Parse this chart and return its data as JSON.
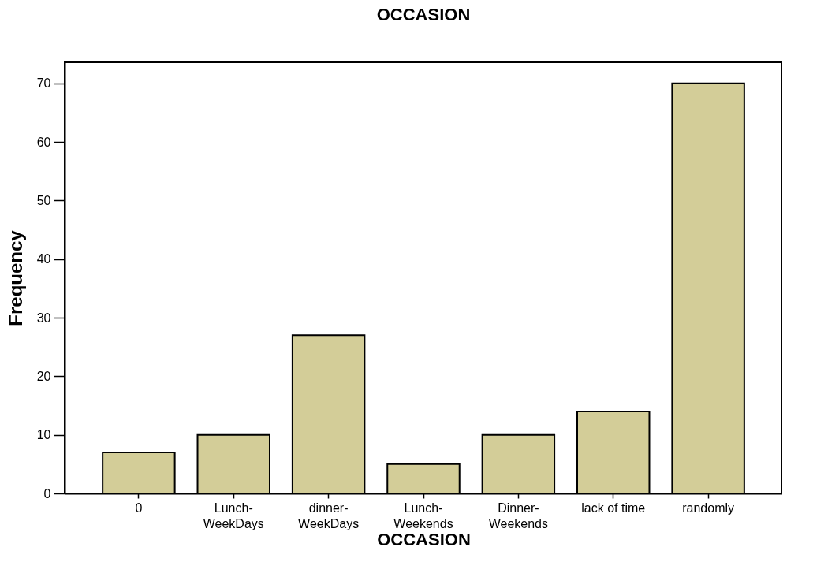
{
  "chart_data": {
    "type": "bar",
    "title": "OCCASION",
    "xlabel": "OCCASION",
    "ylabel": "Frequency",
    "categories": [
      "0",
      "Lunch-WeekDays",
      "dinner-WeekDays",
      "Lunch-Weekends",
      "Dinner-Weekends",
      "lack of time",
      "randomly"
    ],
    "values": [
      7,
      10,
      27,
      5,
      10,
      14,
      70
    ],
    "color": "#d3cd98",
    "ylim": [
      0,
      73.6
    ],
    "yticks": [
      0,
      10,
      20,
      30,
      40,
      50,
      60,
      70
    ],
    "grid": false
  }
}
